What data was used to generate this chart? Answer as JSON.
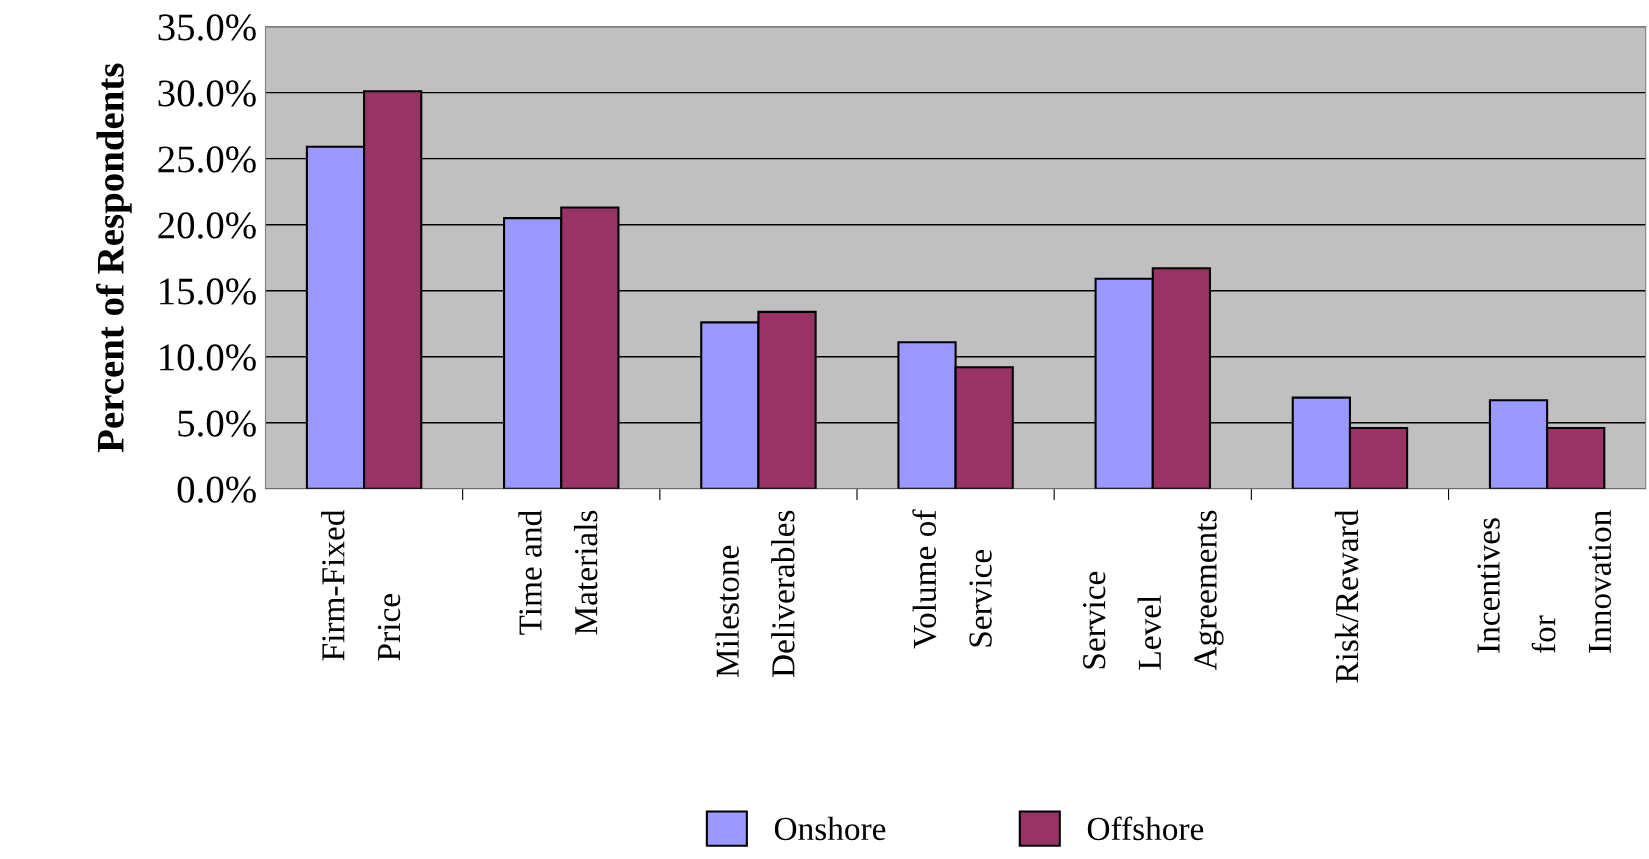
{
  "chart_data": {
    "type": "bar",
    "ylabel": "Percent of Respondents",
    "categories": [
      "Firm-Fixed Price",
      "Time and Materials",
      "Milestone Deliverables",
      "Volume of Service",
      "Service Level Agreements",
      "Risk/Reward",
      "Incentives for Innovation"
    ],
    "series": [
      {
        "name": "Onshore",
        "color": "#9999ff",
        "values": [
          25.9,
          20.5,
          12.6,
          11.1,
          15.9,
          6.9,
          6.7
        ]
      },
      {
        "name": "Offshore",
        "color": "#993366",
        "values": [
          30.1,
          21.3,
          13.4,
          9.2,
          16.7,
          4.6,
          4.6
        ]
      }
    ],
    "ylim": [
      0,
      35
    ],
    "yticks": [
      {
        "value": 0,
        "label": "0.0%"
      },
      {
        "value": 5,
        "label": "5.0%"
      },
      {
        "value": 10,
        "label": "10.0%"
      },
      {
        "value": 15,
        "label": "15.0%"
      },
      {
        "value": 20,
        "label": "20.0%"
      },
      {
        "value": 25,
        "label": "25.0%"
      },
      {
        "value": 30,
        "label": "30.0%"
      },
      {
        "value": 35,
        "label": "35.0%"
      }
    ],
    "grid": "y",
    "legend": "bottom"
  }
}
